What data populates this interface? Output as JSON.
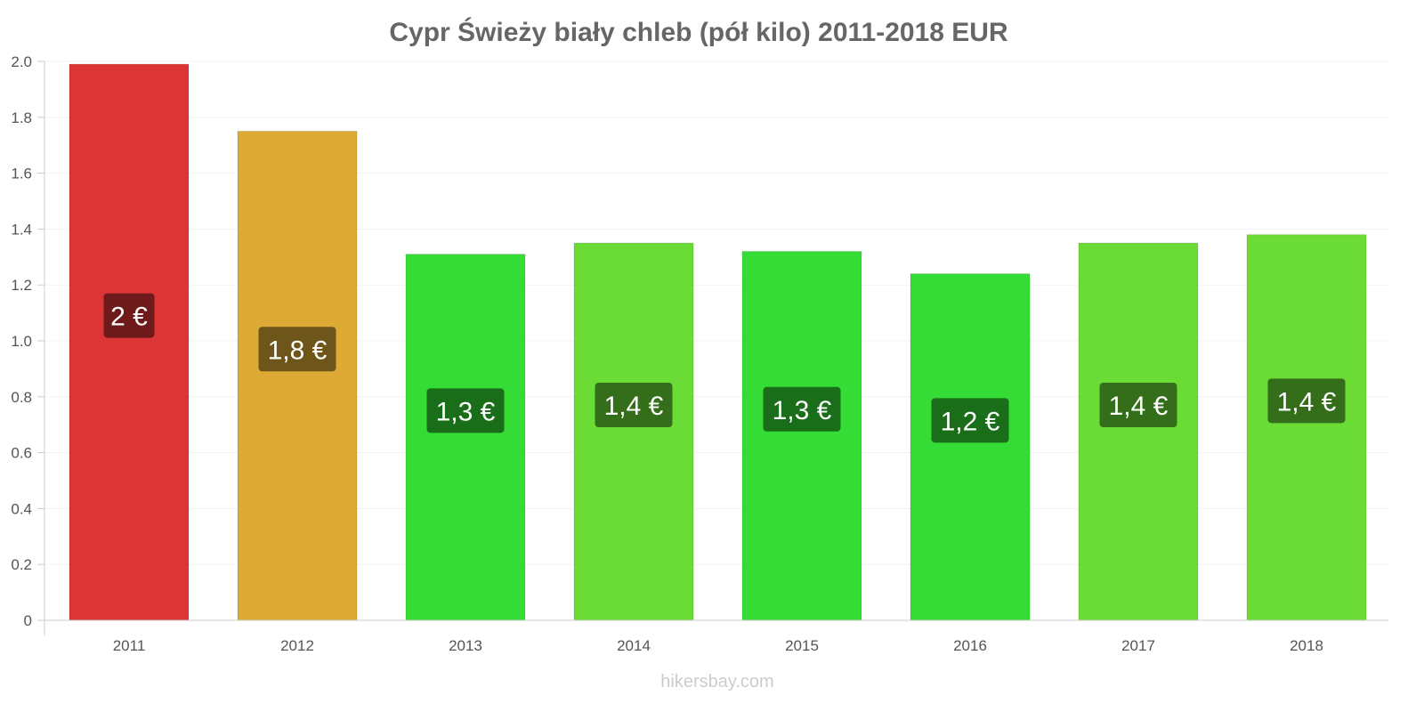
{
  "chart_data": {
    "type": "bar",
    "title": "Cypr Świeży biały chleb (pół kilo) 2011-2018 EUR",
    "xlabel": "",
    "ylabel": "",
    "ylim": [
      0,
      2.0
    ],
    "yticks": [
      "0",
      "0.2",
      "0.4",
      "0.6",
      "0.8",
      "1.0",
      "1.2",
      "1.4",
      "1.6",
      "1.8",
      "2.0"
    ],
    "categories": [
      "2011",
      "2012",
      "2013",
      "2014",
      "2015",
      "2016",
      "2017",
      "2018"
    ],
    "values": [
      1.99,
      1.75,
      1.31,
      1.35,
      1.32,
      1.24,
      1.35,
      1.38
    ],
    "data_labels": [
      "2 €",
      "1,8 €",
      "1,3 €",
      "1,4 €",
      "1,3 €",
      "1,2 €",
      "1,4 €",
      "1,4 €"
    ],
    "bar_colors": [
      "#dc3535",
      "#dcaa35",
      "#35dc35",
      "#6adc35",
      "#35dc35",
      "#35dc35",
      "#6adc35",
      "#6adc35"
    ],
    "label_colors": [
      "#6e1a1a",
      "#6e551a",
      "#1a6e1a",
      "#356e1a",
      "#1a6e1a",
      "#1a6e1a",
      "#356e1a",
      "#356e1a"
    ],
    "grid": true
  },
  "watermark": "hikersbay.com"
}
